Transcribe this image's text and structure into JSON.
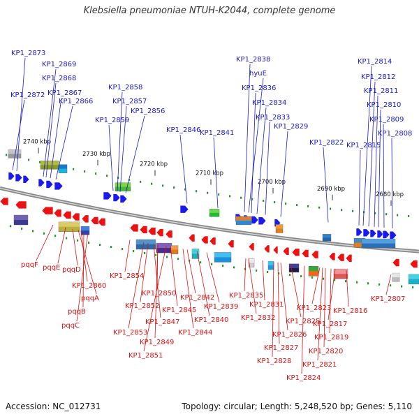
{
  "title": "Klebsiella pneumoniae NTUH-K2044, complete genome",
  "accession_label": "Accession: NC_012731",
  "topology_label": "Topology: circular; Length: 5,248,520 bp; Genes: 5,110",
  "colors": {
    "top_labels": "#1a1acc",
    "bottom_labels": "#dd1111",
    "forward_gene": "#1a1aee",
    "reverse_gene": "#ee1111",
    "track_tick": "#229922"
  },
  "kbp_ticks": [
    "2740 kbp",
    "2730 kbp",
    "2720 kbp",
    "2710 kbp",
    "2700 kbp",
    "2690 kbp",
    "2680 kbp"
  ],
  "top_gene_labels": [
    "KP1_2873",
    "KP1_2869",
    "KP1_2868",
    "KP1_2872",
    "KP1_2867",
    "KP1_2866",
    "KP1_2858",
    "KP1_2857",
    "KP1_2856",
    "KP1_2859",
    "KP1_2846",
    "KP1_2841",
    "KP1_2838",
    "hyuE",
    "KP1_2836",
    "KP1_2834",
    "KP1_2833",
    "KP1_2829",
    "KP1_2822",
    "KP1_2814",
    "KP1_2812",
    "KP1_2811",
    "KP1_2810",
    "KP1_2809",
    "KP1_2815",
    "KP1_2808"
  ],
  "bottom_gene_labels": [
    "pqqF",
    "pqqE",
    "pqqD",
    "KP1_2860",
    "pqqA",
    "pqqB",
    "pqqC",
    "KP1_2854",
    "KP1_2850",
    "KP1_2852",
    "KP1_2845",
    "KP1_2847",
    "KP1_2853",
    "KP1_2849",
    "KP1_2851",
    "KP1_2842",
    "KP1_2839",
    "KP1_2840",
    "KP1_2844",
    "KP1_2835",
    "KP1_2831",
    "KP1_2832",
    "KP1_2823",
    "KP1_2816",
    "KP1_2826",
    "KP1_2825",
    "KP1_2817",
    "KP1_2827",
    "KP1_2819",
    "KP1_2820",
    "KP1_2828",
    "KP1_2821",
    "KP1_2824",
    "KP1_2807"
  ]
}
